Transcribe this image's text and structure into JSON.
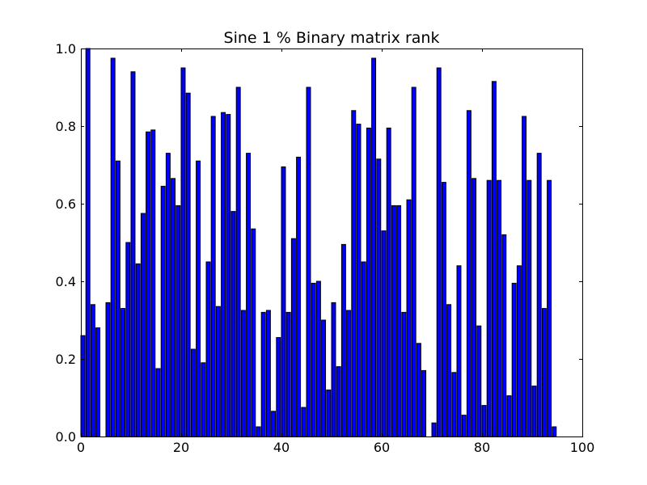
{
  "chart_data": {
    "type": "bar",
    "title": "Sine 1 % Binary matrix rank",
    "xlabel": "",
    "ylabel": "",
    "xlim": [
      0,
      100
    ],
    "ylim": [
      0.0,
      1.0
    ],
    "bar_width": 0.8,
    "bar_color": "#0000ff",
    "bar_edge_color": "#000000",
    "x_ticks": [
      0,
      20,
      40,
      60,
      80,
      100
    ],
    "x_tick_labels": [
      "0",
      "20",
      "40",
      "60",
      "80",
      "100"
    ],
    "y_ticks": [
      0.0,
      0.2,
      0.4,
      0.6,
      0.8,
      1.0
    ],
    "y_tick_labels": [
      "0.0",
      "0.2",
      "0.4",
      "0.6",
      "0.8",
      "1.0"
    ],
    "x": [
      0,
      1,
      2,
      3,
      4,
      5,
      6,
      7,
      8,
      9,
      10,
      11,
      12,
      13,
      14,
      15,
      16,
      17,
      18,
      19,
      20,
      21,
      22,
      23,
      24,
      25,
      26,
      27,
      28,
      29,
      30,
      31,
      32,
      33,
      34,
      35,
      36,
      37,
      38,
      39,
      40,
      41,
      42,
      43,
      44,
      45,
      46,
      47,
      48,
      49,
      50,
      51,
      52,
      53,
      54,
      55,
      56,
      57,
      58,
      59,
      60,
      61,
      62,
      63,
      64,
      65,
      66,
      67,
      68,
      69,
      70,
      71,
      72,
      73,
      74,
      75,
      76,
      77,
      78,
      79,
      80,
      81,
      82,
      83,
      84,
      85,
      86,
      87,
      88,
      89,
      90,
      91,
      92,
      93,
      94
    ],
    "values": [
      0.26,
      1.0,
      0.34,
      0.28,
      0.0,
      0.345,
      0.975,
      0.71,
      0.33,
      0.5,
      0.94,
      0.445,
      0.575,
      0.785,
      0.79,
      0.175,
      0.645,
      0.73,
      0.665,
      0.595,
      0.95,
      0.885,
      0.225,
      0.71,
      0.19,
      0.45,
      0.825,
      0.335,
      0.835,
      0.83,
      0.58,
      0.9,
      0.325,
      0.73,
      0.535,
      0.025,
      0.32,
      0.325,
      0.065,
      0.255,
      0.695,
      0.32,
      0.51,
      0.72,
      0.075,
      0.9,
      0.395,
      0.4,
      0.3,
      0.12,
      0.345,
      0.18,
      0.495,
      0.325,
      0.84,
      0.805,
      0.45,
      0.795,
      0.975,
      0.715,
      0.53,
      0.795,
      0.595,
      0.595,
      0.32,
      0.61,
      0.9,
      0.24,
      0.17,
      0.0,
      0.035,
      0.95,
      0.655,
      0.34,
      0.165,
      0.44,
      0.055,
      0.84,
      0.665,
      0.285,
      0.08,
      0.66,
      0.915,
      0.66,
      0.52,
      0.105,
      0.395,
      0.44,
      0.825,
      0.66,
      0.13,
      0.73,
      0.33,
      0.66,
      0.025
    ]
  }
}
